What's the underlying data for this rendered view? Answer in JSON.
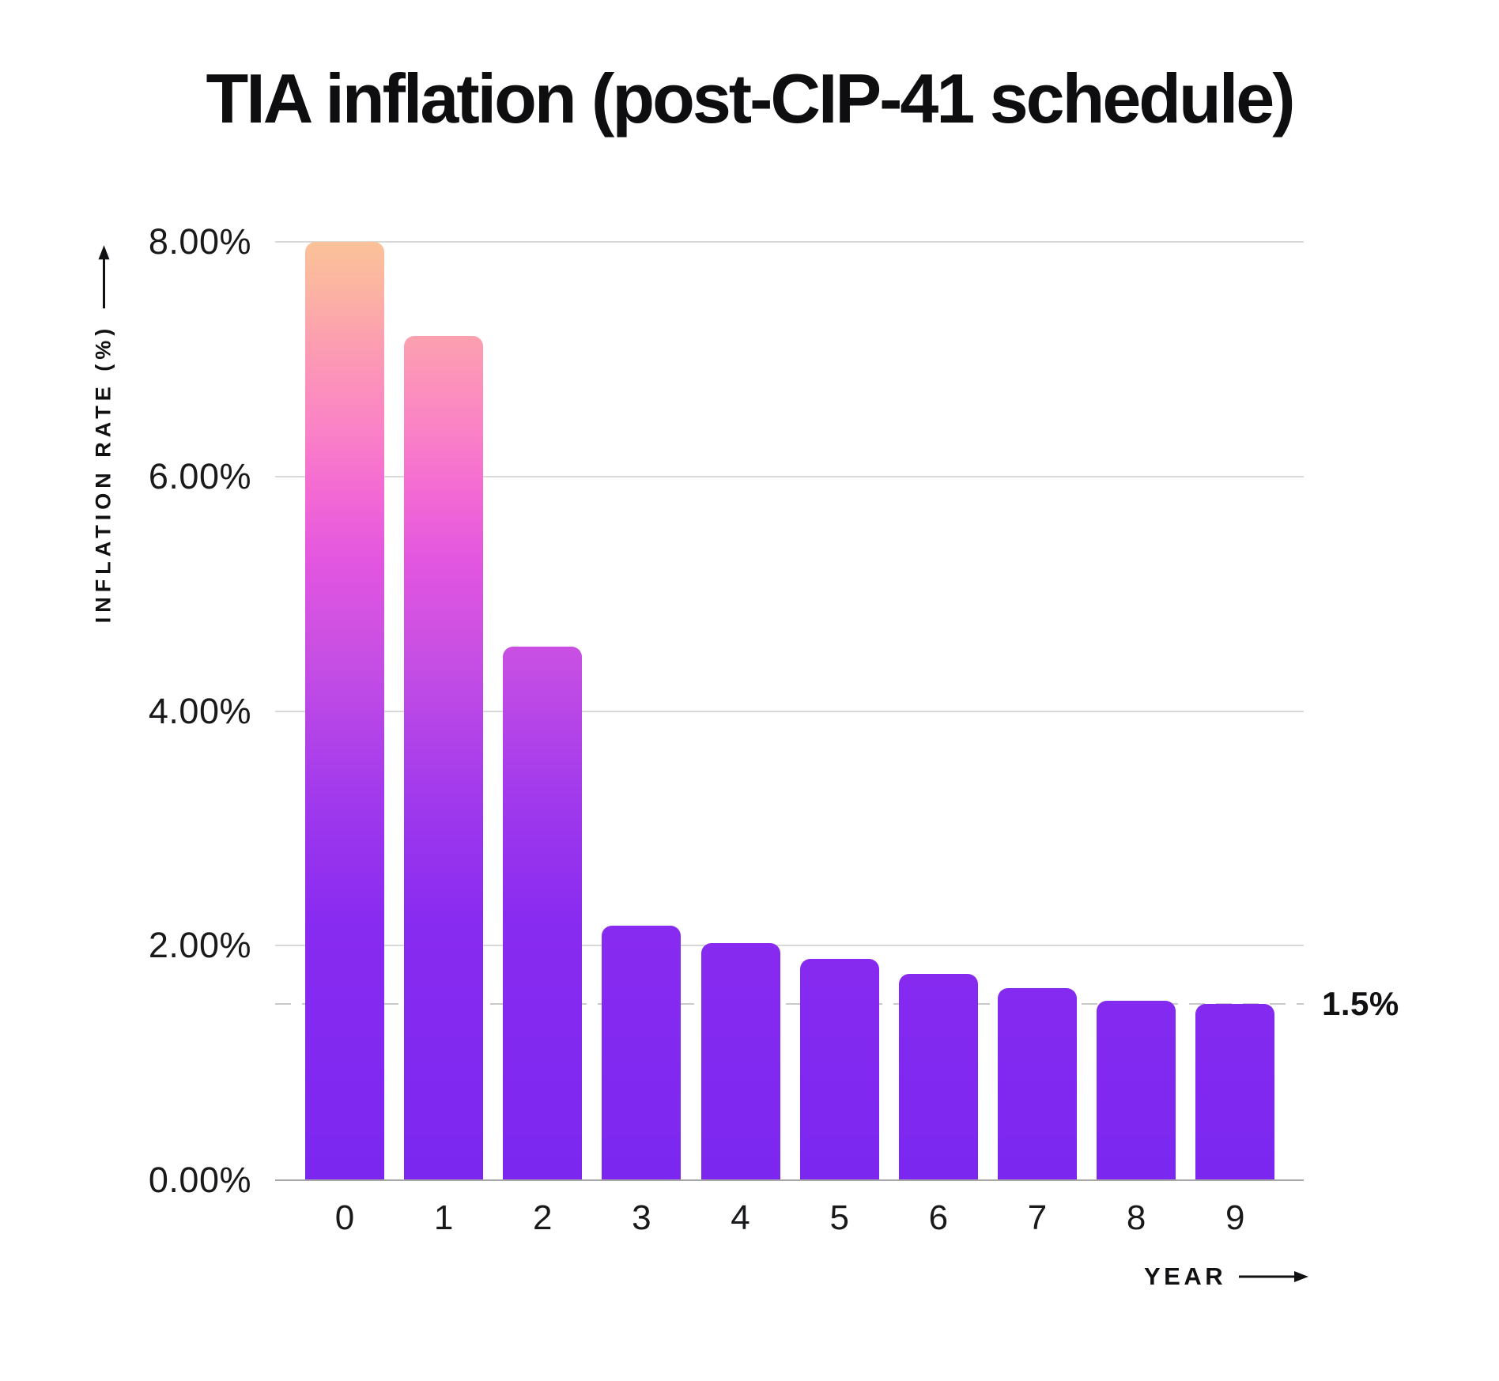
{
  "title": "TIA inflation (post-CIP-41 schedule)",
  "y_axis": {
    "title": "INFLATION RATE (%)",
    "tick_labels": [
      "8.00%",
      "6.00%",
      "4.00%",
      "2.00%",
      "0.00%"
    ],
    "tick_values": [
      8,
      6,
      4,
      2,
      0
    ]
  },
  "x_axis": {
    "title": "YEAR",
    "tick_labels": [
      "0",
      "1",
      "2",
      "3",
      "4",
      "5",
      "6",
      "7",
      "8",
      "9"
    ]
  },
  "annotation": {
    "label": "1.5%",
    "value": 1.5
  },
  "colors": {
    "background": "#ffffff",
    "text": "#0e0e10",
    "gridline": "#d9d9d9",
    "axis_line": "#a8a8a8",
    "dashed_line": "#c9c9c9",
    "bar_gradient_top": "#FBC299",
    "bar_gradient_pink": "#FB85C4",
    "bar_gradient_magenta": "#C84FE3",
    "bar_gradient_bottom": "#7B27F0"
  },
  "chart_data": {
    "type": "bar",
    "title": "TIA inflation (post-CIP-41 schedule)",
    "categories": [
      "0",
      "1",
      "2",
      "3",
      "4",
      "5",
      "6",
      "7",
      "8",
      "9"
    ],
    "values": [
      8.0,
      7.2,
      4.55,
      2.17,
      2.02,
      1.89,
      1.76,
      1.64,
      1.53,
      1.5
    ],
    "xlabel": "YEAR",
    "ylabel": "INFLATION RATE (%)",
    "ylim": [
      0,
      8
    ],
    "yticks": [
      8,
      6,
      4,
      2,
      0
    ],
    "ytick_labels": [
      "8.00%",
      "6.00%",
      "4.00%",
      "2.00%",
      "0.00%"
    ],
    "grid": "horizontal-solid",
    "legend": "none",
    "reference_line": {
      "value": 1.5,
      "label": "1.5%",
      "style": "dashed"
    }
  }
}
